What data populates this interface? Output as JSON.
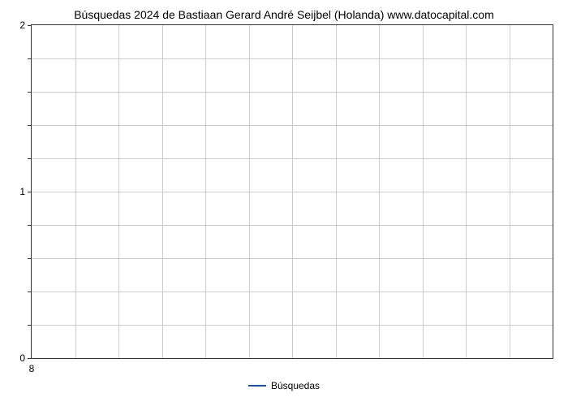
{
  "chart": {
    "type": "line",
    "title": "Búsquedas 2024 de Bastiaan Gerard André Seijbel (Holanda) www.datocapital.com",
    "title_fontsize": 14,
    "title_color": "#000000",
    "background_color": "#ffffff",
    "border_color": "#333333",
    "grid_color": "#cccccc",
    "y_axis": {
      "min": 0,
      "max": 2,
      "major_ticks": [
        0,
        1,
        2
      ],
      "minor_tick_count_between": 4,
      "label_fontsize": 12,
      "label_color": "#000000"
    },
    "x_axis": {
      "major_ticks": [
        8
      ],
      "column_count": 12,
      "label_fontsize": 12,
      "label_color": "#000000"
    },
    "legend": {
      "items": [
        {
          "label": "Búsquedas",
          "color": "#1f4ea1"
        }
      ],
      "fontsize": 12,
      "text_color": "#000000"
    },
    "series": [
      {
        "name": "Búsquedas",
        "color": "#1f4ea1",
        "values": []
      }
    ]
  }
}
